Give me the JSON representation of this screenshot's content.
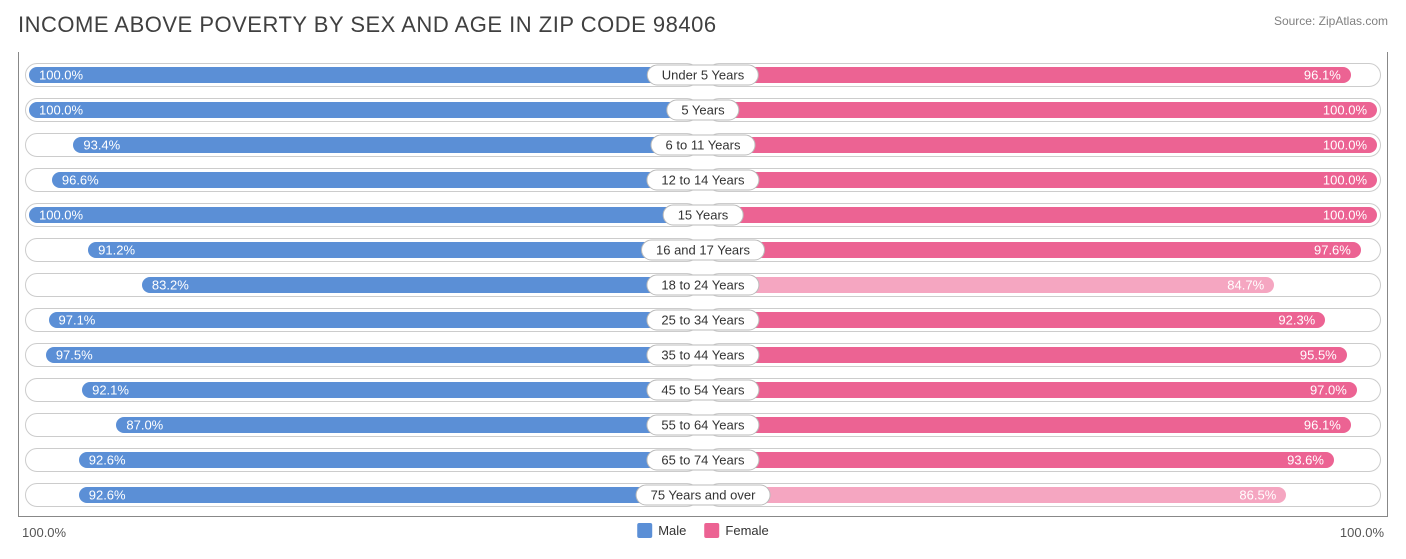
{
  "header": {
    "title": "INCOME ABOVE POVERTY BY SEX AND AGE IN ZIP CODE 98406",
    "source": "Source: ZipAtlas.com"
  },
  "chart": {
    "type": "diverging-bar",
    "male_color": "#5b8fd6",
    "female_color": "#ec6393",
    "female_alt_color": "#f5a6c1",
    "track_border_color": "#cccccc",
    "background_color": "#ffffff",
    "value_font_color": "#ffffff",
    "value_fontsize": 13,
    "category_fontsize": 13,
    "axis_max_label": "100.0%",
    "rows": [
      {
        "category": "Under 5 Years",
        "male": 100.0,
        "male_label": "100.0%",
        "female": 96.1,
        "female_label": "96.1%",
        "female_alt": false
      },
      {
        "category": "5 Years",
        "male": 100.0,
        "male_label": "100.0%",
        "female": 100.0,
        "female_label": "100.0%",
        "female_alt": false
      },
      {
        "category": "6 to 11 Years",
        "male": 93.4,
        "male_label": "93.4%",
        "female": 100.0,
        "female_label": "100.0%",
        "female_alt": false
      },
      {
        "category": "12 to 14 Years",
        "male": 96.6,
        "male_label": "96.6%",
        "female": 100.0,
        "female_label": "100.0%",
        "female_alt": false
      },
      {
        "category": "15 Years",
        "male": 100.0,
        "male_label": "100.0%",
        "female": 100.0,
        "female_label": "100.0%",
        "female_alt": false
      },
      {
        "category": "16 and 17 Years",
        "male": 91.2,
        "male_label": "91.2%",
        "female": 97.6,
        "female_label": "97.6%",
        "female_alt": false
      },
      {
        "category": "18 to 24 Years",
        "male": 83.2,
        "male_label": "83.2%",
        "female": 84.7,
        "female_label": "84.7%",
        "female_alt": true
      },
      {
        "category": "25 to 34 Years",
        "male": 97.1,
        "male_label": "97.1%",
        "female": 92.3,
        "female_label": "92.3%",
        "female_alt": false
      },
      {
        "category": "35 to 44 Years",
        "male": 97.5,
        "male_label": "97.5%",
        "female": 95.5,
        "female_label": "95.5%",
        "female_alt": false
      },
      {
        "category": "45 to 54 Years",
        "male": 92.1,
        "male_label": "92.1%",
        "female": 97.0,
        "female_label": "97.0%",
        "female_alt": false
      },
      {
        "category": "55 to 64 Years",
        "male": 87.0,
        "male_label": "87.0%",
        "female": 96.1,
        "female_label": "96.1%",
        "female_alt": false
      },
      {
        "category": "65 to 74 Years",
        "male": 92.6,
        "male_label": "92.6%",
        "female": 93.6,
        "female_label": "93.6%",
        "female_alt": false
      },
      {
        "category": "75 Years and over",
        "male": 92.6,
        "male_label": "92.6%",
        "female": 86.5,
        "female_label": "86.5%",
        "female_alt": true
      }
    ]
  },
  "legend": {
    "items": [
      {
        "label": "Male",
        "color": "#5b8fd6"
      },
      {
        "label": "Female",
        "color": "#ec6393"
      }
    ]
  }
}
